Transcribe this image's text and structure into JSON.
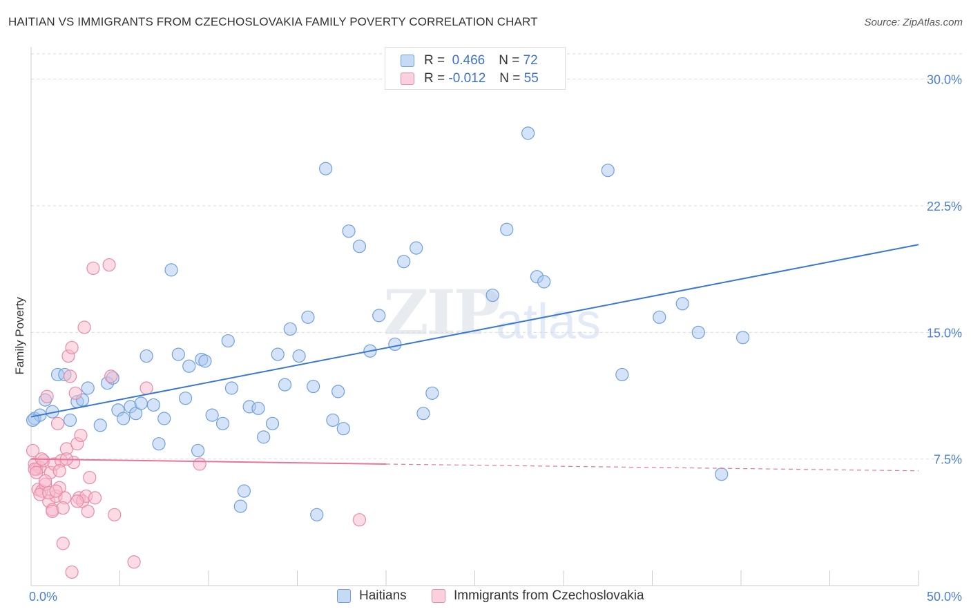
{
  "title": "HAITIAN VS IMMIGRANTS FROM CZECHOSLOVAKIA FAMILY POVERTY CORRELATION CHART",
  "source": "Source: ZipAtlas.com",
  "watermark": {
    "zip": "ZIP",
    "atlas": "atlas"
  },
  "legend": {
    "rows": [
      {
        "r_label": "R =",
        "r_value": "0.466",
        "n_label": "N =",
        "n_value": "72"
      },
      {
        "r_label": "R =",
        "r_value": "-0.012",
        "n_label": "N =",
        "n_value": "55"
      }
    ]
  },
  "colors": {
    "haitians_fill": "#a9c8f0",
    "haitians_stroke": "#6f9fdc",
    "haitians_line": "#3a78d0",
    "czech_fill": "#f7b9cc",
    "czech_stroke": "#e88aa8",
    "czech_line": "#e8739b",
    "grid": "#d9d9d9",
    "tick_text": "#4a7fd4"
  },
  "chart_data": {
    "type": "scatter",
    "title": "HAITIAN VS IMMIGRANTS FROM CZECHOSLOVAKIA FAMILY POVERTY CORRELATION CHART",
    "xlabel": "",
    "ylabel": "Family Poverty",
    "xlim": [
      0,
      50
    ],
    "ylim": [
      0,
      31.5
    ],
    "x_tick_labels": [
      "0.0%",
      "50.0%"
    ],
    "y_ticks": [
      7.5,
      15.0,
      22.5,
      30.0
    ],
    "y_tick_labels": [
      "7.5%",
      "15.0%",
      "22.5%",
      "30.0%"
    ],
    "grid": "horizontal dashed",
    "legend_position": "bottom",
    "series": [
      {
        "name": "Haitians",
        "points": [
          [
            0.2,
            9.9
          ],
          [
            0.5,
            10.1
          ],
          [
            0.8,
            11.0
          ],
          [
            1.2,
            10.3
          ],
          [
            1.5,
            12.5
          ],
          [
            1.9,
            12.5
          ],
          [
            2.2,
            9.8
          ],
          [
            2.6,
            10.9
          ],
          [
            2.9,
            11.0
          ],
          [
            3.2,
            11.7
          ],
          [
            3.9,
            9.5
          ],
          [
            4.3,
            12.0
          ],
          [
            4.6,
            12.3
          ],
          [
            4.9,
            10.4
          ],
          [
            5.2,
            9.9
          ],
          [
            5.6,
            10.6
          ],
          [
            5.9,
            10.2
          ],
          [
            6.2,
            10.8
          ],
          [
            6.5,
            13.6
          ],
          [
            6.9,
            10.7
          ],
          [
            7.2,
            8.4
          ],
          [
            7.5,
            9.9
          ],
          [
            7.9,
            18.7
          ],
          [
            8.3,
            13.7
          ],
          [
            8.7,
            11.1
          ],
          [
            8.9,
            13.0
          ],
          [
            9.4,
            8.0
          ],
          [
            9.6,
            13.4
          ],
          [
            9.8,
            13.3
          ],
          [
            10.2,
            10.1
          ],
          [
            10.8,
            9.6
          ],
          [
            11.1,
            14.5
          ],
          [
            11.3,
            11.7
          ],
          [
            11.8,
            4.7
          ],
          [
            12.0,
            5.6
          ],
          [
            12.3,
            10.6
          ],
          [
            12.8,
            10.5
          ],
          [
            13.1,
            8.8
          ],
          [
            13.6,
            9.6
          ],
          [
            13.9,
            13.7
          ],
          [
            14.3,
            11.9
          ],
          [
            14.6,
            15.2
          ],
          [
            15.1,
            13.6
          ],
          [
            15.6,
            15.9
          ],
          [
            15.9,
            11.8
          ],
          [
            16.1,
            4.2
          ],
          [
            16.6,
            24.7
          ],
          [
            17.0,
            9.8
          ],
          [
            17.3,
            11.5
          ],
          [
            17.6,
            9.3
          ],
          [
            17.9,
            21.0
          ],
          [
            18.5,
            20.1
          ],
          [
            19.1,
            13.9
          ],
          [
            19.6,
            16.0
          ],
          [
            20.5,
            14.3
          ],
          [
            21.0,
            19.2
          ],
          [
            21.7,
            20.0
          ],
          [
            22.1,
            10.2
          ],
          [
            22.6,
            11.4
          ],
          [
            26.0,
            17.2
          ],
          [
            26.8,
            21.1
          ],
          [
            28.0,
            26.8
          ],
          [
            28.5,
            18.3
          ],
          [
            28.9,
            18.0
          ],
          [
            32.5,
            24.6
          ],
          [
            33.3,
            12.5
          ],
          [
            35.4,
            15.9
          ],
          [
            36.7,
            16.7
          ],
          [
            37.6,
            15.0
          ],
          [
            38.9,
            6.6
          ],
          [
            40.1,
            14.7
          ],
          [
            0.1,
            9.8
          ]
        ]
      },
      {
        "name": "Immigrants from Czechoslovakia",
        "points": [
          [
            0.1,
            8.0
          ],
          [
            0.2,
            7.2
          ],
          [
            0.3,
            6.9
          ],
          [
            0.4,
            5.7
          ],
          [
            0.5,
            7.0
          ],
          [
            0.6,
            5.6
          ],
          [
            0.7,
            7.4
          ],
          [
            0.8,
            6.0
          ],
          [
            0.9,
            11.2
          ],
          [
            1.0,
            5.0
          ],
          [
            1.1,
            6.7
          ],
          [
            1.2,
            4.5
          ],
          [
            1.3,
            7.2
          ],
          [
            1.4,
            5.3
          ],
          [
            1.5,
            9.6
          ],
          [
            1.6,
            5.8
          ],
          [
            1.7,
            7.4
          ],
          [
            1.8,
            2.5
          ],
          [
            1.9,
            5.2
          ],
          [
            2.0,
            8.1
          ],
          [
            2.1,
            13.6
          ],
          [
            2.2,
            12.4
          ],
          [
            2.3,
            14.1
          ],
          [
            2.4,
            7.3
          ],
          [
            2.5,
            11.4
          ],
          [
            2.6,
            8.4
          ],
          [
            2.7,
            5.2
          ],
          [
            2.8,
            8.9
          ],
          [
            2.9,
            5.0
          ],
          [
            3.0,
            15.3
          ],
          [
            3.1,
            5.3
          ],
          [
            3.2,
            4.4
          ],
          [
            3.3,
            6.4
          ],
          [
            3.5,
            18.8
          ],
          [
            3.6,
            5.2
          ],
          [
            4.4,
            19.0
          ],
          [
            4.5,
            12.4
          ],
          [
            4.7,
            4.2
          ],
          [
            5.8,
            1.4
          ],
          [
            6.5,
            11.7
          ],
          [
            9.5,
            7.2
          ],
          [
            18.5,
            3.9
          ],
          [
            0.2,
            6.9
          ],
          [
            0.3,
            6.7
          ],
          [
            0.5,
            5.4
          ],
          [
            0.6,
            7.5
          ],
          [
            0.8,
            6.2
          ],
          [
            1.0,
            5.5
          ],
          [
            1.2,
            4.4
          ],
          [
            1.4,
            5.6
          ],
          [
            1.6,
            6.8
          ],
          [
            1.8,
            4.6
          ],
          [
            2.0,
            7.5
          ],
          [
            2.3,
            0.8
          ],
          [
            2.6,
            5.0
          ]
        ]
      }
    ],
    "trend_lines": [
      {
        "series": "Haitians",
        "x": [
          0,
          50
        ],
        "y": [
          10.0,
          20.2
        ],
        "style": "solid"
      },
      {
        "series": "Immigrants from Czechoslovakia",
        "x": [
          0,
          20
        ],
        "y": [
          7.5,
          7.2
        ],
        "style": "solid"
      },
      {
        "series": "Immigrants from Czechoslovakia",
        "x": [
          20,
          50
        ],
        "y": [
          7.2,
          6.8
        ],
        "style": "dashed"
      }
    ]
  }
}
